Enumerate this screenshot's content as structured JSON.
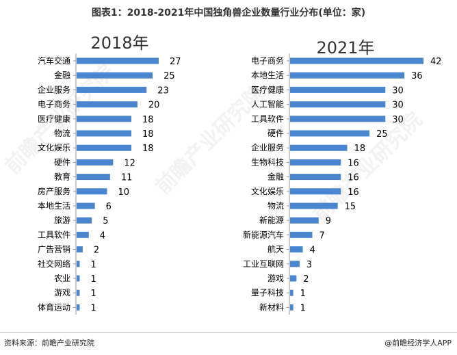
{
  "title": "图表1：2018-2021年中国独角兽企业数量行业分布(单位：家)",
  "footer": {
    "source": "资料来源：前瞻产业研究院",
    "brand": "@前瞻经济学人APP"
  },
  "watermark": "前瞻产业研究院",
  "colors": {
    "bar": "#4a86cf",
    "tick": "#999999"
  },
  "chart_data": [
    {
      "type": "bar",
      "orientation": "horizontal",
      "title": "2018年",
      "categories": [
        "汽车交通",
        "金融",
        "企业服务",
        "电子商务",
        "医疗健康",
        "物流",
        "文化娱乐",
        "硬件",
        "教育",
        "房产服务",
        "本地生活",
        "旅游",
        "工具软件",
        "广告营销",
        "社交网络",
        "农业",
        "游戏",
        "体育运动"
      ],
      "values": [
        27,
        25,
        23,
        20,
        18,
        18,
        18,
        12,
        11,
        10,
        6,
        5,
        4,
        2,
        1,
        1,
        1,
        1
      ],
      "xlim": [
        0,
        27
      ]
    },
    {
      "type": "bar",
      "orientation": "horizontal",
      "title": "2021年",
      "categories": [
        "电子商务",
        "本地生活",
        "医疗健康",
        "人工智能",
        "工具软件",
        "硬件",
        "企业服务",
        "生物科技",
        "金融",
        "文化娱乐",
        "物流",
        "新能源",
        "新能源汽车",
        "航天",
        "工业互联网",
        "游戏",
        "量子科技",
        "新材料"
      ],
      "values": [
        42,
        36,
        30,
        30,
        30,
        25,
        18,
        16,
        16,
        16,
        15,
        9,
        7,
        4,
        3,
        2,
        1,
        1
      ],
      "xlim": [
        0,
        42
      ]
    }
  ]
}
